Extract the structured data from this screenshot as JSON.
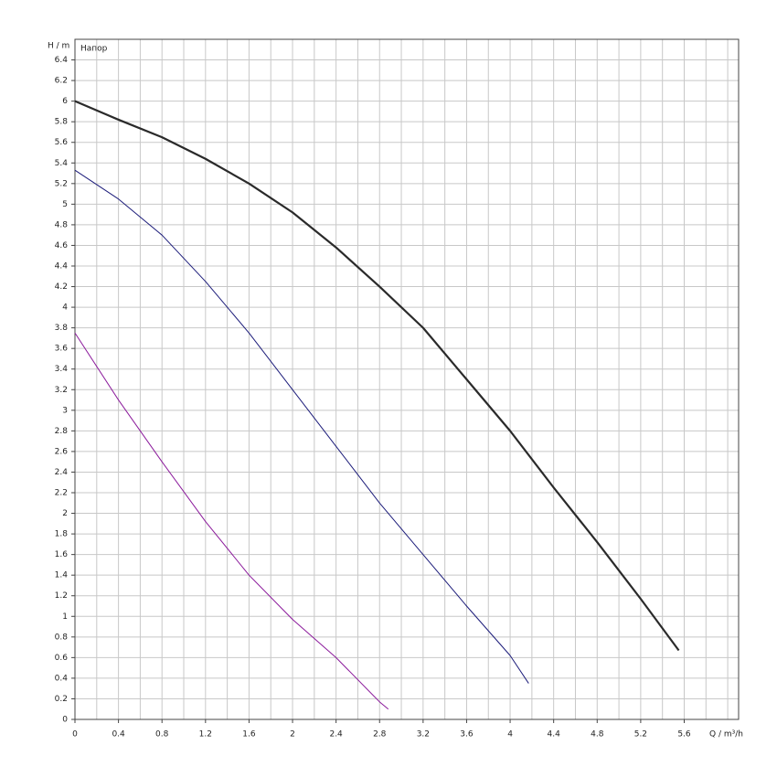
{
  "chart_data": {
    "type": "line",
    "ylabel": "H / m",
    "annotation": "Напор",
    "xlabel": "Q / m³/h",
    "xlim": [
      0,
      6.1
    ],
    "ylim": [
      0,
      6.6
    ],
    "xticks": [
      0,
      0.4,
      0.8,
      1.2,
      1.6,
      2,
      2.4,
      2.8,
      3.2,
      3.6,
      4,
      4.4,
      4.8,
      5.2,
      5.6
    ],
    "xgrid": [
      0,
      0.2,
      0.4,
      0.6,
      0.8,
      1,
      1.2,
      1.4,
      1.6,
      1.8,
      2,
      2.2,
      2.4,
      2.6,
      2.8,
      3,
      3.2,
      3.4,
      3.6,
      3.8,
      4,
      4.2,
      4.4,
      4.6,
      4.8,
      5,
      5.2,
      5.4,
      5.6,
      5.8,
      6
    ],
    "yticks": [
      0,
      0.2,
      0.4,
      0.6,
      0.8,
      1,
      1.2,
      1.4,
      1.6,
      1.8,
      2,
      2.2,
      2.4,
      2.6,
      2.8,
      3,
      3.2,
      3.4,
      3.6,
      3.8,
      4,
      4.2,
      4.4,
      4.6,
      4.8,
      5,
      5.2,
      5.4,
      5.6,
      5.8,
      6,
      6.2,
      6.4
    ],
    "grid": true,
    "series": [
      {
        "color": "#2a2a2a",
        "width": 2.2,
        "x": [
          0,
          0.4,
          0.8,
          1.2,
          1.6,
          2,
          2.4,
          2.8,
          3.2,
          3.6,
          4,
          4.4,
          4.8,
          5.2,
          5.55
        ],
        "values": [
          6,
          5.82,
          5.65,
          5.44,
          5.2,
          4.92,
          4.58,
          4.2,
          3.8,
          3.3,
          2.8,
          2.25,
          1.72,
          1.17,
          0.67
        ]
      },
      {
        "color": "#1c1c7a",
        "width": 1,
        "x": [
          0,
          0.4,
          0.8,
          1.2,
          1.6,
          2,
          2.4,
          2.8,
          3.2,
          3.6,
          4,
          4.17
        ],
        "values": [
          5.33,
          5.05,
          4.7,
          4.25,
          3.75,
          3.2,
          2.65,
          2.1,
          1.6,
          1.1,
          0.62,
          0.35
        ]
      },
      {
        "color": "#8b1a9b",
        "width": 1,
        "x": [
          0,
          0.4,
          0.8,
          1.2,
          1.6,
          2,
          2.4,
          2.8,
          2.88
        ],
        "values": [
          3.75,
          3.1,
          2.5,
          1.92,
          1.4,
          0.97,
          0.6,
          0.17,
          0.1
        ]
      }
    ]
  }
}
